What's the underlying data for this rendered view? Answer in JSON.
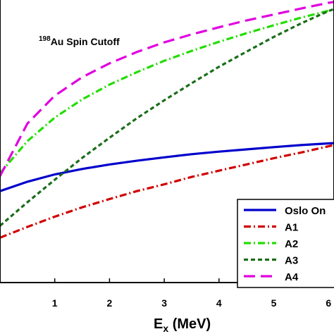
{
  "chart_data": {
    "type": "line",
    "annotation": {
      "mass_number": "198",
      "text": "Au Spin Cutoff"
    },
    "xlabel": {
      "main": "E",
      "subscript": "x",
      "rest": " (MeV)"
    },
    "ylabel": "",
    "xlim": [
      0,
      6.1
    ],
    "ylim": [
      0,
      1
    ],
    "xticks": [
      "1",
      "2",
      "3",
      "4",
      "5",
      "6"
    ],
    "grid": false,
    "legend_position": "bottom-right",
    "series": [
      {
        "name": "Oslo On",
        "color": "#0000cc",
        "dash": "solid",
        "x": [
          0,
          0.5,
          1,
          1.5,
          2,
          2.5,
          3,
          3.5,
          4,
          4.5,
          5,
          5.5,
          6,
          6.1
        ],
        "y": [
          0.322,
          0.355,
          0.381,
          0.4,
          0.416,
          0.429,
          0.441,
          0.452,
          0.461,
          0.469,
          0.477,
          0.484,
          0.49,
          0.491
        ]
      },
      {
        "name": "A1",
        "color": "#d00000",
        "dash": "dashdot",
        "x": [
          0,
          0.5,
          1,
          1.5,
          2,
          2.5,
          3,
          3.5,
          4,
          4.5,
          5,
          5.5,
          6,
          6.1
        ],
        "y": [
          0.158,
          0.196,
          0.232,
          0.265,
          0.294,
          0.322,
          0.346,
          0.372,
          0.394,
          0.416,
          0.438,
          0.458,
          0.48,
          0.484
        ]
      },
      {
        "name": "A2",
        "color": "#22dd00",
        "dash": "dashdot",
        "x": [
          0,
          0.5,
          1,
          1.5,
          2,
          2.5,
          3,
          3.5,
          4,
          4.5,
          5,
          5.5,
          6,
          6.1
        ],
        "y": [
          0.385,
          0.498,
          0.581,
          0.645,
          0.697,
          0.741,
          0.781,
          0.816,
          0.848,
          0.878,
          0.906,
          0.933,
          0.957,
          0.962
        ]
      },
      {
        "name": "A3",
        "color": "#1a6e1a",
        "dash": "dashed",
        "x": [
          0,
          0.5,
          1,
          1.5,
          2,
          2.5,
          3,
          3.5,
          4,
          4.5,
          5,
          5.5,
          6,
          6.1
        ],
        "y": [
          0.2,
          0.283,
          0.362,
          0.439,
          0.51,
          0.579,
          0.642,
          0.702,
          0.76,
          0.813,
          0.865,
          0.913,
          0.956,
          0.963
        ]
      },
      {
        "name": "A4",
        "color": "#e000e0",
        "dash": "longdash",
        "x": [
          0,
          0.5,
          1,
          1.5,
          2,
          2.5,
          3,
          3.5,
          4,
          4.5,
          5,
          5.5,
          6,
          6.1
        ],
        "y": [
          0.375,
          0.56,
          0.658,
          0.723,
          0.772,
          0.812,
          0.846,
          0.874,
          0.899,
          0.923,
          0.944,
          0.965,
          0.985,
          0.988
        ]
      }
    ]
  }
}
